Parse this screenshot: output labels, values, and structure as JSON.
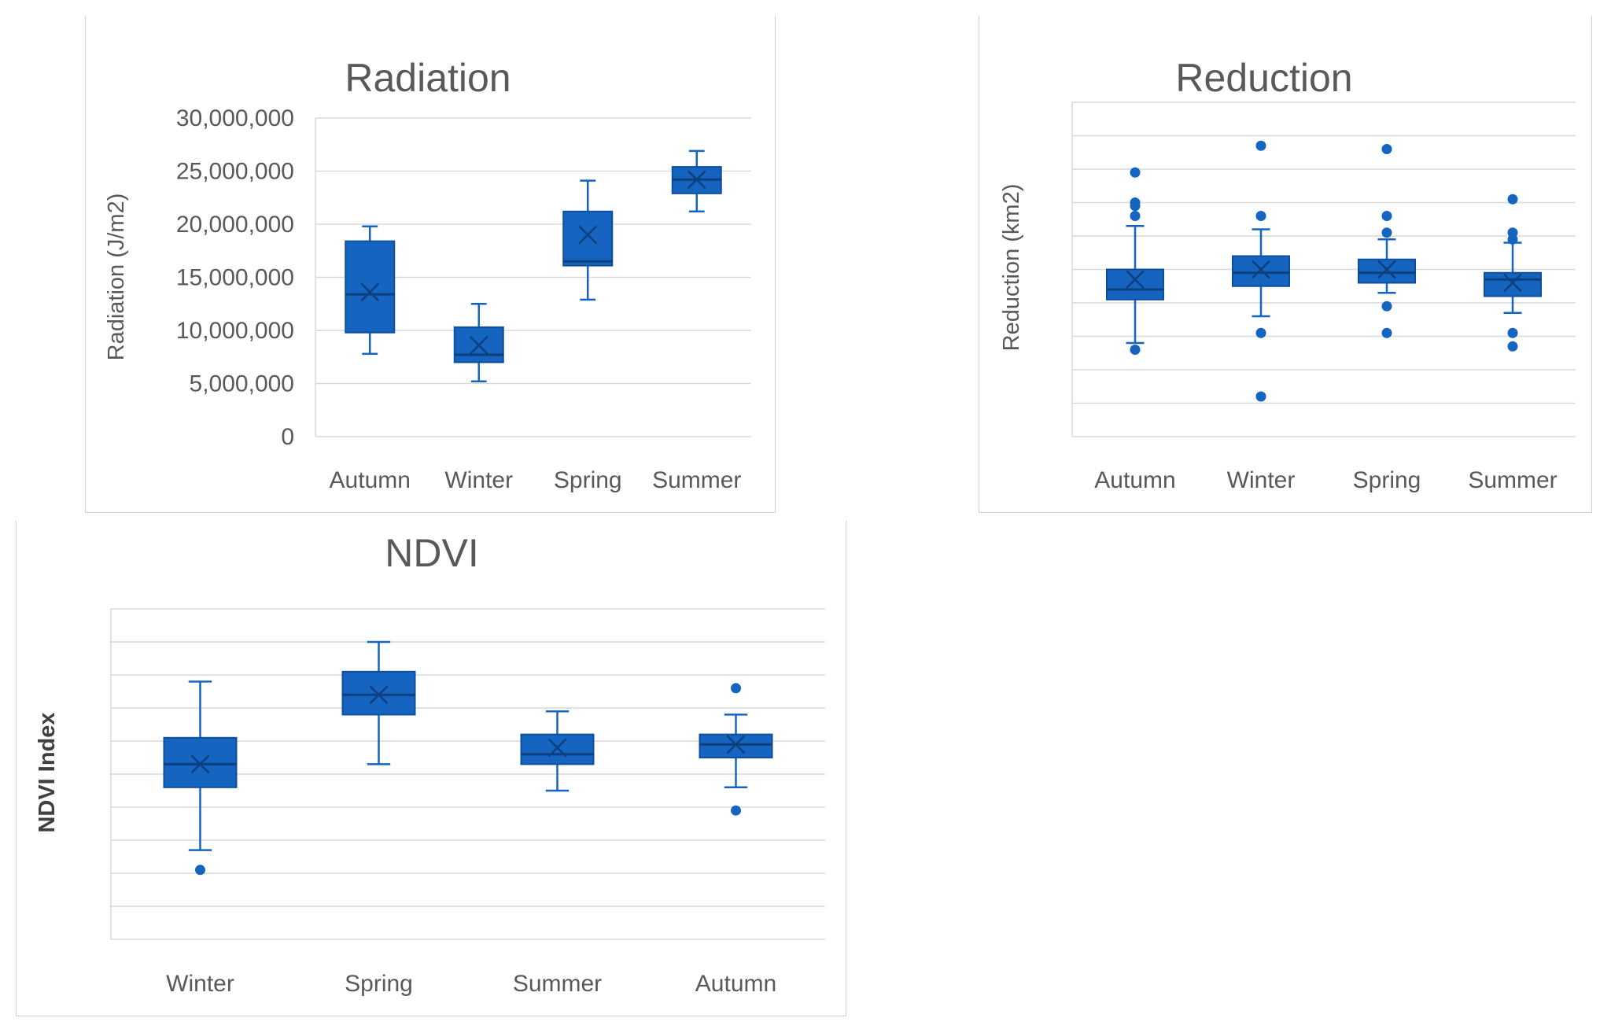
{
  "chart_data": [
    {
      "id": "radiation",
      "type": "boxplot",
      "title": "Radiation",
      "xlabel": "",
      "ylabel": "Radiation (J/m2)",
      "ylim": [
        0,
        30000000
      ],
      "yticks": [
        0,
        5000000,
        10000000,
        15000000,
        20000000,
        25000000,
        30000000
      ],
      "ytick_labels": [
        "0",
        "5,000,000",
        "10,000,000",
        "15,000,000",
        "20,000,000",
        "25,000,000",
        "30,000,000"
      ],
      "categories": [
        "Autumn",
        "Winter",
        "Spring",
        "Summer"
      ],
      "boxes": [
        {
          "min": 7800000,
          "q1": 9800000,
          "median": 13400000,
          "q3": 18400000,
          "max": 19800000,
          "mean": 13600000,
          "outliers": []
        },
        {
          "min": 5200000,
          "q1": 7000000,
          "median": 7700000,
          "q3": 10300000,
          "max": 12500000,
          "mean": 8600000,
          "outliers": []
        },
        {
          "min": 12900000,
          "q1": 16100000,
          "median": 16500000,
          "q3": 21200000,
          "max": 24100000,
          "mean": 19000000,
          "outliers": []
        },
        {
          "min": 21200000,
          "q1": 22900000,
          "median": 24200000,
          "q3": 25400000,
          "max": 26900000,
          "mean": 24200000,
          "outliers": []
        }
      ]
    },
    {
      "id": "reduction",
      "type": "boxplot",
      "title": "Reduction",
      "xlabel": "",
      "ylabel": "Reduction (km2)",
      "ylim": [
        0,
        10
      ],
      "yticks": [
        0,
        1,
        2,
        3,
        4,
        5,
        6,
        7,
        8,
        9,
        10
      ],
      "ytick_labels": [],
      "categories": [
        "Autumn",
        "Winter",
        "Spring",
        "Summer"
      ],
      "boxes": [
        {
          "min": 2.8,
          "q1": 4.1,
          "median": 4.4,
          "q3": 5.0,
          "max": 6.3,
          "mean": 4.7,
          "outliers": [
            2.6,
            6.6,
            6.9,
            7.0,
            7.9
          ]
        },
        {
          "min": 3.6,
          "q1": 4.5,
          "median": 4.9,
          "q3": 5.4,
          "max": 6.2,
          "mean": 5.0,
          "outliers": [
            6.6,
            3.1,
            1.2,
            8.7
          ]
        },
        {
          "min": 4.3,
          "q1": 4.6,
          "median": 4.9,
          "q3": 5.3,
          "max": 5.9,
          "mean": 5.0,
          "outliers": [
            3.9,
            3.1,
            6.1,
            6.6,
            8.6
          ]
        },
        {
          "min": 3.7,
          "q1": 4.2,
          "median": 4.7,
          "q3": 4.9,
          "max": 5.8,
          "mean": 4.6,
          "outliers": [
            5.9,
            6.1,
            3.1,
            2.7,
            7.1
          ]
        }
      ]
    },
    {
      "id": "ndvi",
      "type": "boxplot",
      "title": "NDVI",
      "xlabel": "",
      "ylabel": "NDVI Index",
      "ylim": [
        0,
        10
      ],
      "yticks": [
        0,
        1,
        2,
        3,
        4,
        5,
        6,
        7,
        8,
        9,
        10
      ],
      "ytick_labels": [],
      "categories": [
        "Winter",
        "Spring",
        "Summer",
        "Autumn"
      ],
      "boxes": [
        {
          "min": 2.7,
          "q1": 4.6,
          "median": 5.3,
          "q3": 6.1,
          "max": 7.8,
          "mean": 5.3,
          "outliers": [
            2.1
          ]
        },
        {
          "min": 5.3,
          "q1": 6.8,
          "median": 7.4,
          "q3": 8.1,
          "max": 9.0,
          "mean": 7.4,
          "outliers": []
        },
        {
          "min": 4.5,
          "q1": 5.3,
          "median": 5.6,
          "q3": 6.2,
          "max": 6.9,
          "mean": 5.8,
          "outliers": []
        },
        {
          "min": 4.6,
          "q1": 5.5,
          "median": 5.9,
          "q3": 6.2,
          "max": 6.8,
          "mean": 5.9,
          "outliers": [
            7.6,
            3.9
          ]
        }
      ]
    }
  ],
  "style": {
    "box_fill": "#1565c0",
    "box_stroke": "#0d4f9e",
    "whisker": "#1565c0",
    "median_line": "#0b3f7d",
    "grid": "#d9d9d9",
    "text": "#595959"
  }
}
